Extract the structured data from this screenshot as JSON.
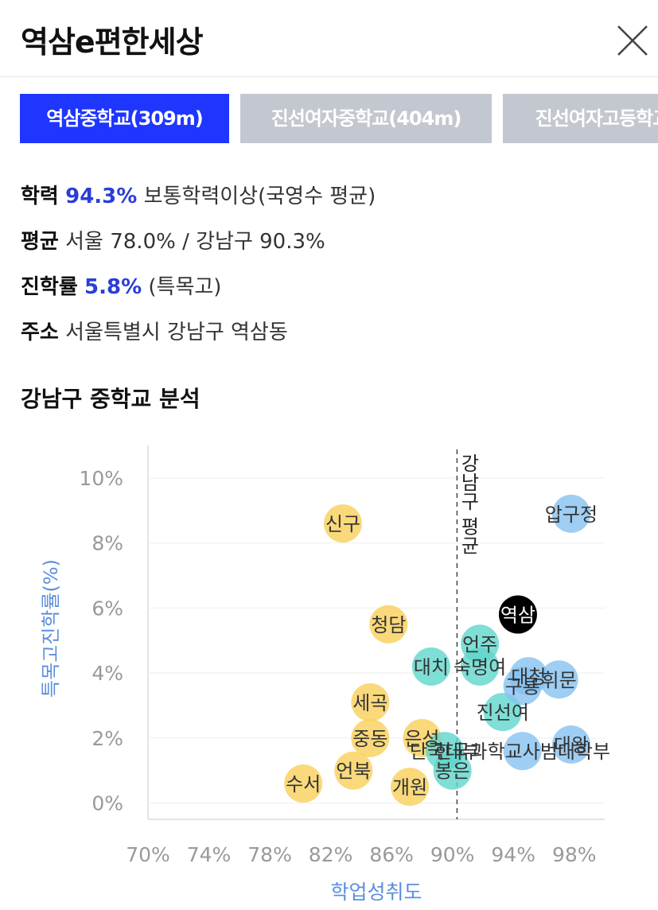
{
  "header": {
    "title": "역삼e편한세상",
    "close_icon": "close-icon"
  },
  "tabs": [
    {
      "label": "역삼중학교(309m)",
      "active": true
    },
    {
      "label": "진선여자중학교(404m)",
      "active": false
    },
    {
      "label": "진선여자고등학교",
      "active": false
    }
  ],
  "info": {
    "achievement": {
      "key": "학력",
      "value": "94.3%",
      "text": "보통학력이상(국영수 평균)"
    },
    "average": {
      "key": "평균",
      "text": "서울 78.0% / 강남구 90.3%"
    },
    "advancement": {
      "key": "진학률",
      "value": "5.8%",
      "text": "(특목고)"
    },
    "address": {
      "key": "주소",
      "text": "서울특별시 강남구 역삼동"
    }
  },
  "section_title": "강남구 중학교 분석",
  "colors": {
    "accent": "#1f36ff",
    "tab_inactive": "#c3c7cf",
    "bubble_low": "#f9cf5a",
    "bubble_mid": "#5fd6cc",
    "bubble_high": "#86c2f0",
    "bubble_selected": "#000000",
    "axis_label": "#5b8fdc"
  },
  "chart_data": {
    "type": "scatter",
    "xlabel": "학업성취도",
    "ylabel": "특목고진학률(%)",
    "xlim": [
      70,
      100
    ],
    "ylim": [
      -0.5,
      11
    ],
    "x_ticks": [
      "70%",
      "74%",
      "78%",
      "82%",
      "86%",
      "90%",
      "94%",
      "98%"
    ],
    "y_ticks": [
      "0%",
      "2%",
      "4%",
      "6%",
      "8%",
      "10%"
    ],
    "reference_line": {
      "x": 90.3,
      "label": "강남구 평균"
    },
    "points": [
      {
        "label": "신구",
        "x": 82.8,
        "y": 8.6,
        "group": "low"
      },
      {
        "label": "청담",
        "x": 85.8,
        "y": 5.5,
        "group": "low"
      },
      {
        "label": "세곡",
        "x": 84.6,
        "y": 3.1,
        "group": "low"
      },
      {
        "label": "중동",
        "x": 84.6,
        "y": 2.0,
        "group": "low"
      },
      {
        "label": "은성",
        "x": 88.0,
        "y": 2.0,
        "group": "low"
      },
      {
        "label": "언북",
        "x": 83.5,
        "y": 1.0,
        "group": "low"
      },
      {
        "label": "수서",
        "x": 80.2,
        "y": 0.6,
        "group": "low"
      },
      {
        "label": "개원",
        "x": 87.2,
        "y": 0.5,
        "group": "low"
      },
      {
        "label": "대치",
        "x": 88.6,
        "y": 4.2,
        "group": "mid"
      },
      {
        "label": "숙명여",
        "x": 91.8,
        "y": 4.2,
        "group": "mid"
      },
      {
        "label": "언주",
        "x": 91.8,
        "y": 4.9,
        "group": "mid"
      },
      {
        "label": "진선여",
        "x": 93.3,
        "y": 2.8,
        "group": "mid"
      },
      {
        "label": "단국대부",
        "x": 89.5,
        "y": 1.6,
        "group": "mid"
      },
      {
        "label": "봉은",
        "x": 90.0,
        "y": 1.0,
        "group": "mid"
      },
      {
        "label": "역삼",
        "x": 94.3,
        "y": 5.8,
        "group": "selected"
      },
      {
        "label": "압구정",
        "x": 97.8,
        "y": 8.9,
        "group": "high"
      },
      {
        "label": "구룡",
        "x": 94.6,
        "y": 3.6,
        "group": "high"
      },
      {
        "label": "대청",
        "x": 95.0,
        "y": 3.9,
        "group": "high"
      },
      {
        "label": "휘문",
        "x": 97.0,
        "y": 3.8,
        "group": "high"
      },
      {
        "label": "한국과학교사범대학부",
        "x": 94.6,
        "y": 1.6,
        "group": "high"
      },
      {
        "label": "대왕",
        "x": 97.8,
        "y": 1.8,
        "group": "high"
      }
    ]
  }
}
